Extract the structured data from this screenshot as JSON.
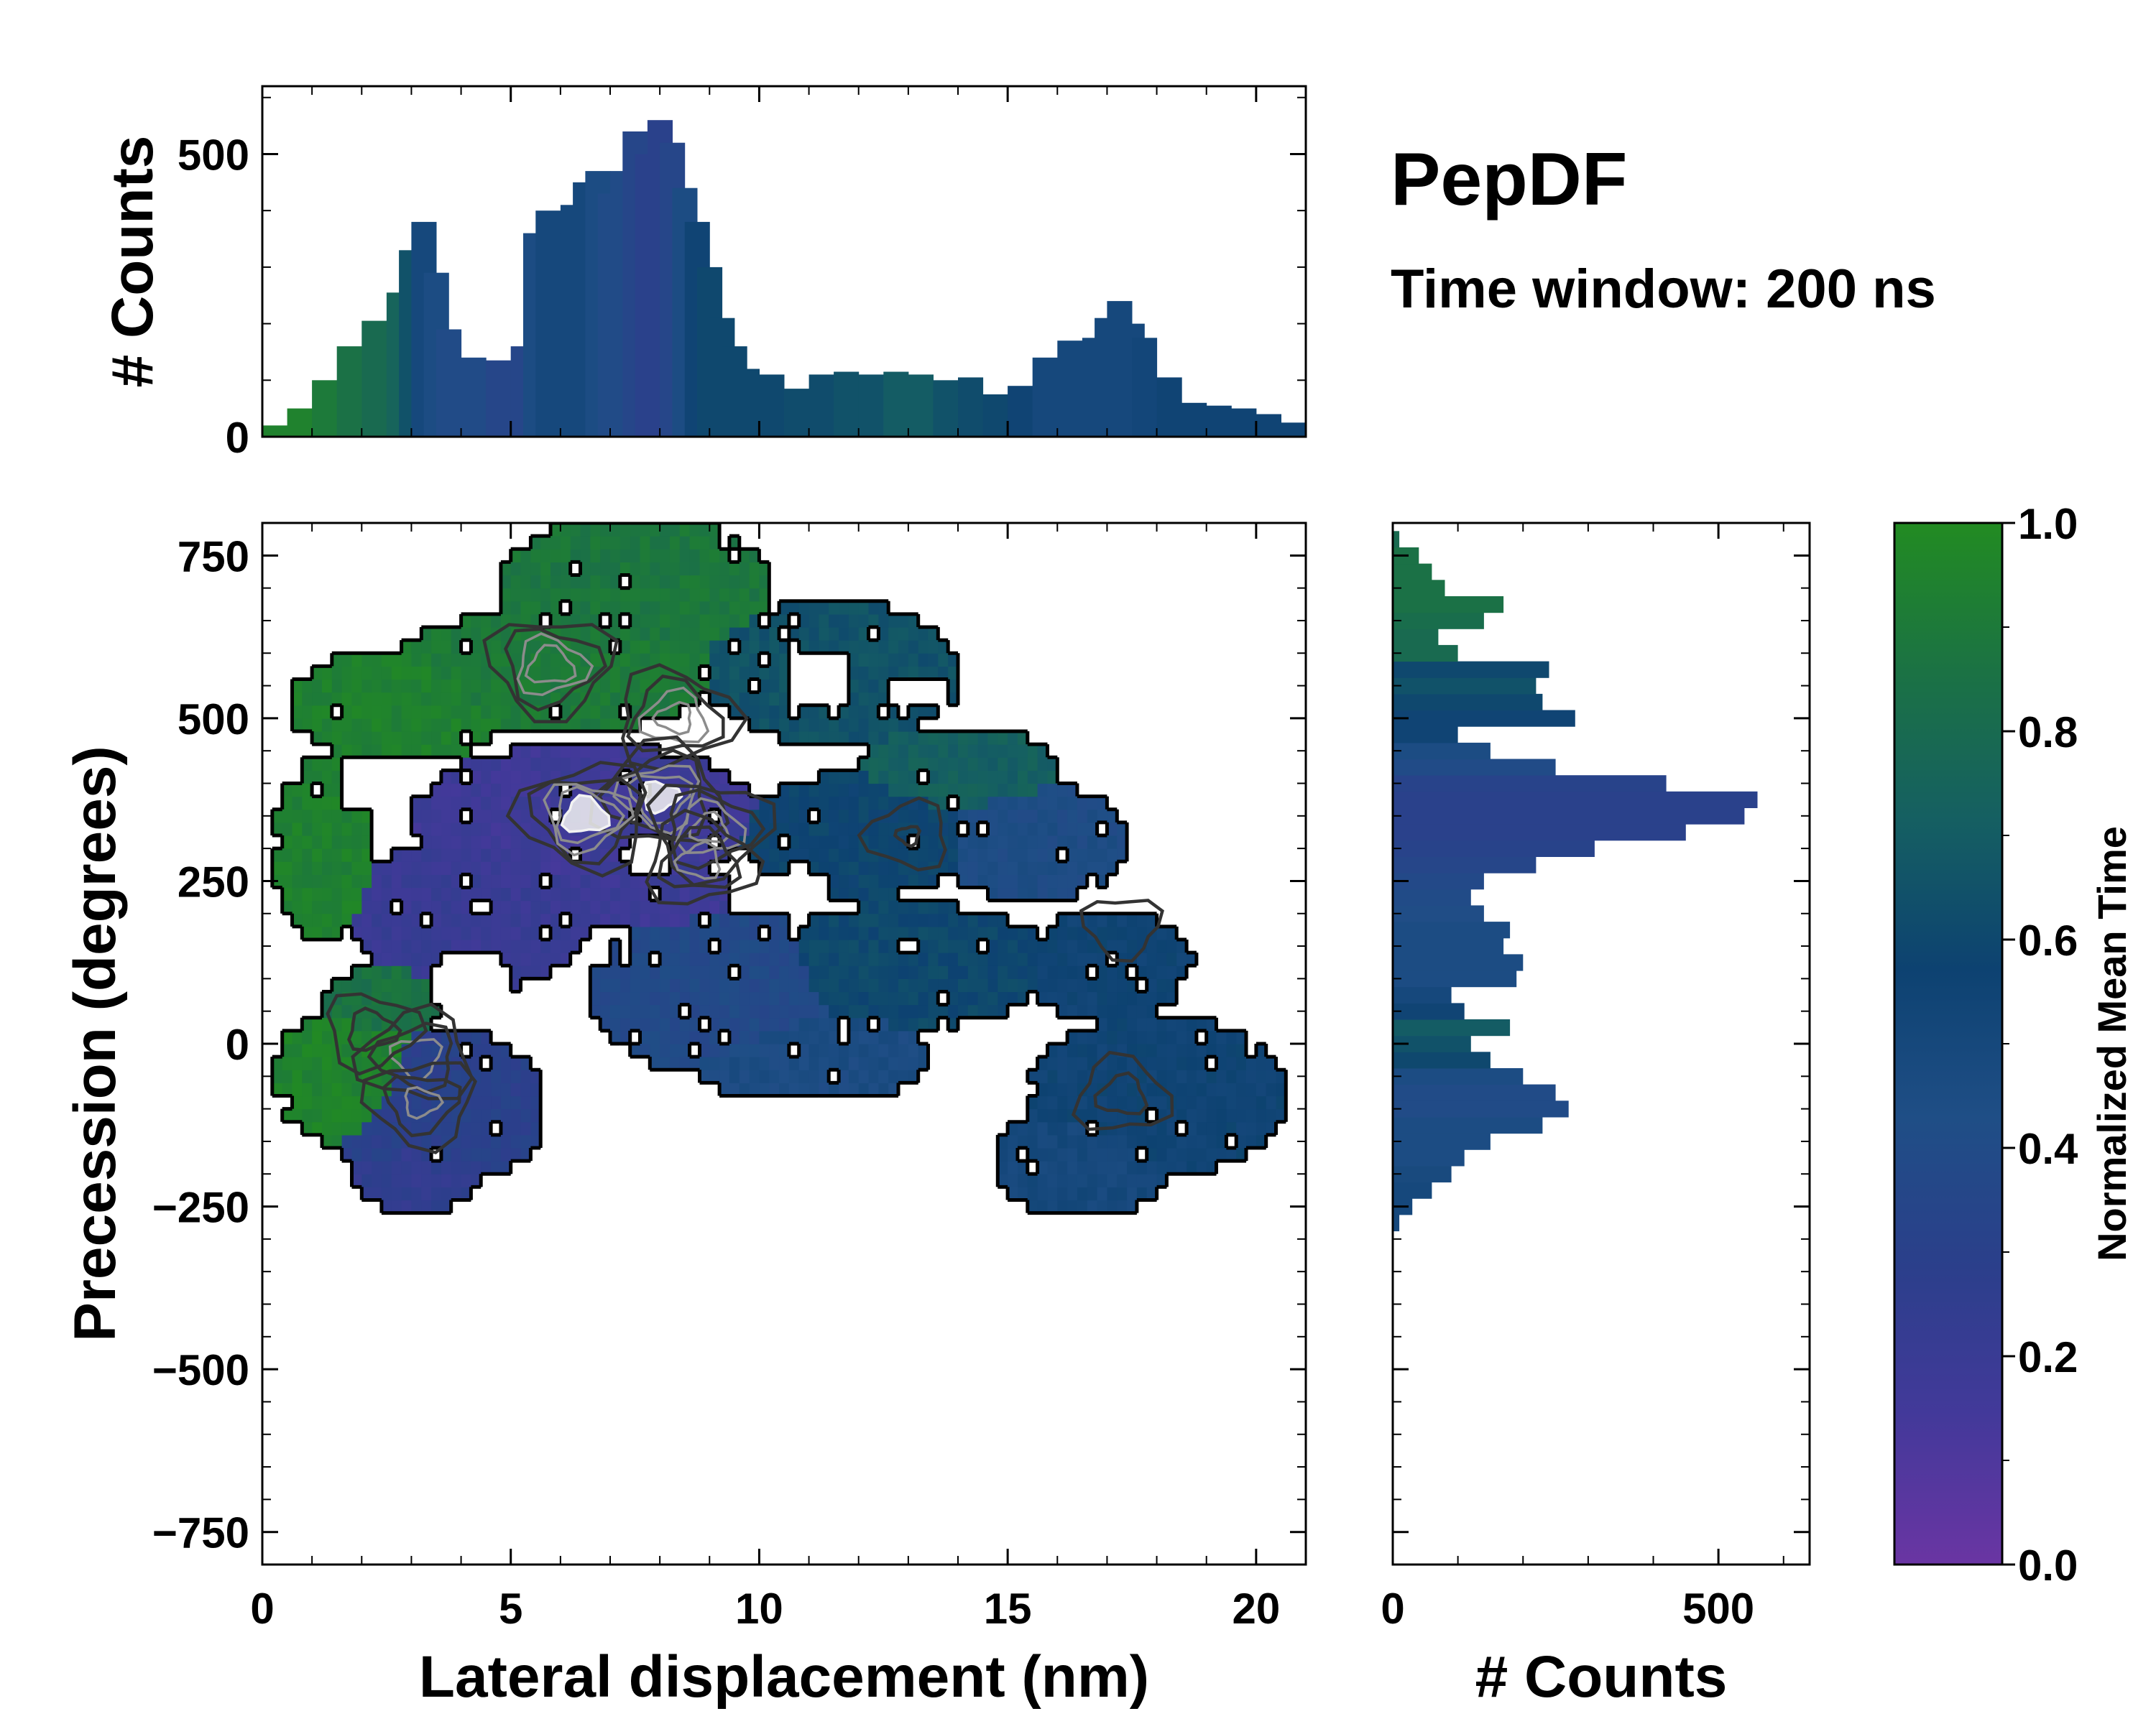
{
  "title": "PepDF",
  "subtitle": "Time window: 200 ns",
  "colors": {
    "cmap": [
      "#6a35a3",
      "#43399a",
      "#2b3f8b",
      "#1f4e86",
      "#0d4271",
      "#155f62",
      "#1b7244",
      "#228b22"
    ],
    "contour_outer": "#000000",
    "contour_mid": "#333333",
    "contour_inner": "#8c8c8c",
    "hotspot": "#f2f2f2"
  },
  "chart_data": [
    {
      "id": "joint",
      "type": "heatmap",
      "xlabel": "Lateral displacement (nm)",
      "ylabel": "Precession (degrees)",
      "xlim": [
        0,
        21
      ],
      "ylim": [
        -800,
        800
      ],
      "xticks": [
        0,
        5,
        10,
        15,
        20
      ],
      "xtick_labels": [
        "0",
        "5",
        "10",
        "15",
        "20"
      ],
      "yticks": [
        -750,
        -500,
        -250,
        0,
        250,
        500,
        750
      ],
      "ytick_labels": [
        "−750",
        "−500",
        "−250",
        "0",
        "250",
        "500",
        "750"
      ],
      "colorbar_variable": "Normalized Mean Time",
      "clusters": [
        {
          "cx": 2.8,
          "cy": 520,
          "rx": 2.3,
          "ry": 85,
          "time": 0.94
        },
        {
          "cx": 5.8,
          "cy": 570,
          "rx": 3.3,
          "ry": 95,
          "time": 0.9
        },
        {
          "cx": 7.5,
          "cy": 700,
          "rx": 2.8,
          "ry": 110,
          "time": 0.88
        },
        {
          "cx": 11.5,
          "cy": 570,
          "rx": 2.6,
          "ry": 110,
          "time": 0.65
        },
        {
          "cx": 14.0,
          "cy": 420,
          "rx": 2.0,
          "ry": 70,
          "time": 0.72
        },
        {
          "cx": 1.2,
          "cy": 300,
          "rx": 1.0,
          "ry": 150,
          "time": 0.94
        },
        {
          "cx": 6.5,
          "cy": 350,
          "rx": 3.5,
          "ry": 110,
          "time": 0.17
        },
        {
          "cx": 4.2,
          "cy": 200,
          "rx": 2.4,
          "ry": 120,
          "time": 0.2
        },
        {
          "cx": 12.0,
          "cy": 320,
          "rx": 2.4,
          "ry": 95,
          "time": 0.58
        },
        {
          "cx": 15.5,
          "cy": 310,
          "rx": 1.9,
          "ry": 90,
          "time": 0.43
        },
        {
          "cx": 13.0,
          "cy": 120,
          "rx": 3.0,
          "ry": 95,
          "time": 0.6
        },
        {
          "cx": 9.2,
          "cy": 80,
          "rx": 2.6,
          "ry": 130,
          "time": 0.38
        },
        {
          "cx": 11.0,
          "cy": -20,
          "rx": 2.5,
          "ry": 70,
          "time": 0.45
        },
        {
          "cx": 17.0,
          "cy": 120,
          "rx": 1.8,
          "ry": 85,
          "time": 0.55
        },
        {
          "cx": 18.0,
          "cy": -80,
          "rx": 2.7,
          "ry": 125,
          "time": 0.55
        },
        {
          "cx": 16.5,
          "cy": -180,
          "rx": 1.8,
          "ry": 85,
          "time": 0.5
        },
        {
          "cx": 1.8,
          "cy": -50,
          "rx": 1.6,
          "ry": 110,
          "time": 0.95
        },
        {
          "cx": 3.5,
          "cy": -100,
          "rx": 2.2,
          "ry": 130,
          "time": 0.3
        },
        {
          "cx": 3.2,
          "cy": -200,
          "rx": 1.4,
          "ry": 60,
          "time": 0.25
        },
        {
          "cx": 2.5,
          "cy": 60,
          "rx": 1.3,
          "ry": 60,
          "time": 0.85
        },
        {
          "cx": 7.5,
          "cy": 230,
          "rx": 2.0,
          "ry": 60,
          "time": 0.18
        }
      ],
      "holes": [
        {
          "cx": 4.2,
          "cy": 90,
          "rx": 0.8,
          "ry": 55
        },
        {
          "cx": 9.8,
          "cy": 450,
          "rx": 0.6,
          "ry": 40
        },
        {
          "cx": 11.2,
          "cy": 560,
          "rx": 0.7,
          "ry": 45
        },
        {
          "cx": 10.8,
          "cy": 230,
          "rx": 0.6,
          "ry": 45
        },
        {
          "cx": 2.0,
          "cy": 390,
          "rx": 0.5,
          "ry": 40
        },
        {
          "cx": 13.2,
          "cy": 540,
          "rx": 0.7,
          "ry": 30
        },
        {
          "cx": 7.8,
          "cy": 290,
          "rx": 0.5,
          "ry": 25
        }
      ],
      "density_peaks": [
        {
          "x": 5.8,
          "y": 580,
          "w": 2.2
        },
        {
          "x": 8.3,
          "y": 500,
          "w": 2.0
        },
        {
          "x": 8.0,
          "y": 380,
          "w": 2.6
        },
        {
          "x": 6.5,
          "y": 350,
          "w": 2.8
        },
        {
          "x": 9.0,
          "y": 330,
          "w": 2.0
        },
        {
          "x": 8.8,
          "y": 280,
          "w": 1.5
        },
        {
          "x": 3.1,
          "y": -20,
          "w": 1.6
        },
        {
          "x": 3.2,
          "y": -90,
          "w": 1.4
        },
        {
          "x": 2.2,
          "y": 20,
          "w": 1.0
        },
        {
          "x": 17.3,
          "y": -80,
          "w": 1.0
        },
        {
          "x": 13.0,
          "y": 320,
          "w": 0.8
        },
        {
          "x": 17.3,
          "y": 180,
          "w": 0.7
        }
      ]
    },
    {
      "id": "top_marginal",
      "type": "bar",
      "ylabel": "# Counts",
      "xlim": [
        0,
        21
      ],
      "ylim": [
        0,
        620
      ],
      "yticks": [
        0,
        500
      ],
      "ytick_labels": [
        "0",
        "500"
      ],
      "x": [
        0.25,
        0.75,
        1.25,
        1.75,
        2.25,
        2.75,
        3.0,
        3.25,
        3.5,
        3.75,
        4.25,
        4.75,
        5.25,
        5.5,
        5.75,
        6.0,
        6.25,
        6.5,
        6.75,
        7.0,
        7.25,
        7.5,
        7.75,
        8.0,
        8.25,
        8.5,
        8.75,
        9.0,
        9.25,
        9.5,
        9.75,
        10.25,
        10.75,
        11.25,
        11.75,
        12.25,
        12.75,
        13.25,
        13.75,
        14.25,
        14.75,
        15.25,
        15.75,
        16.25,
        16.75,
        17.0,
        17.25,
        17.5,
        17.75,
        18.25,
        18.75,
        19.25,
        19.75,
        20.25,
        20.75
      ],
      "values": [
        20,
        50,
        100,
        160,
        205,
        255,
        330,
        380,
        290,
        190,
        140,
        135,
        160,
        360,
        400,
        360,
        410,
        450,
        470,
        430,
        470,
        540,
        500,
        560,
        520,
        440,
        380,
        300,
        210,
        160,
        120,
        110,
        85,
        110,
        115,
        110,
        115,
        110,
        100,
        105,
        75,
        90,
        140,
        170,
        175,
        210,
        240,
        200,
        175,
        105,
        60,
        55,
        50,
        40,
        25
      ],
      "times": [
        0.95,
        0.95,
        0.9,
        0.85,
        0.8,
        0.75,
        0.65,
        0.5,
        0.45,
        0.4,
        0.4,
        0.35,
        0.35,
        0.45,
        0.5,
        0.5,
        0.5,
        0.5,
        0.45,
        0.4,
        0.4,
        0.35,
        0.3,
        0.3,
        0.35,
        0.45,
        0.55,
        0.6,
        0.6,
        0.6,
        0.6,
        0.6,
        0.62,
        0.62,
        0.65,
        0.65,
        0.7,
        0.7,
        0.65,
        0.62,
        0.6,
        0.55,
        0.5,
        0.5,
        0.5,
        0.5,
        0.5,
        0.5,
        0.52,
        0.55,
        0.55,
        0.55,
        0.55,
        0.55,
        0.55
      ]
    },
    {
      "id": "right_marginal",
      "type": "bar",
      "xlabel": "# Counts",
      "xlim": [
        0,
        640
      ],
      "xticks": [
        0,
        500
      ],
      "xtick_labels": [
        "0",
        "500"
      ],
      "ylim": [
        -800,
        800
      ],
      "y": [
        -275,
        -250,
        -225,
        -200,
        -175,
        -150,
        -125,
        -100,
        -75,
        -50,
        -25,
        0,
        25,
        50,
        75,
        100,
        125,
        150,
        175,
        200,
        225,
        250,
        275,
        300,
        325,
        350,
        375,
        400,
        425,
        450,
        475,
        500,
        525,
        550,
        575,
        600,
        625,
        650,
        675,
        700,
        725,
        750,
        775
      ],
      "values": [
        10,
        30,
        60,
        90,
        110,
        150,
        230,
        270,
        250,
        200,
        150,
        120,
        180,
        110,
        90,
        190,
        200,
        170,
        180,
        140,
        120,
        140,
        220,
        310,
        450,
        540,
        560,
        420,
        250,
        150,
        100,
        280,
        230,
        220,
        240,
        100,
        70,
        140,
        170,
        80,
        60,
        40,
        10
      ],
      "times": [
        0.5,
        0.5,
        0.5,
        0.48,
        0.45,
        0.45,
        0.45,
        0.4,
        0.4,
        0.45,
        0.6,
        0.65,
        0.7,
        0.55,
        0.5,
        0.45,
        0.45,
        0.45,
        0.45,
        0.42,
        0.4,
        0.38,
        0.35,
        0.32,
        0.3,
        0.3,
        0.3,
        0.32,
        0.4,
        0.45,
        0.55,
        0.55,
        0.6,
        0.65,
        0.6,
        0.8,
        0.8,
        0.82,
        0.85,
        0.85,
        0.85,
        0.85,
        0.8
      ]
    }
  ],
  "colorbar": {
    "label": "Normalized Mean Time",
    "range": [
      0,
      1
    ],
    "ticks": [
      0,
      0.2,
      0.4,
      0.6,
      0.8,
      1.0
    ],
    "tick_labels": [
      "0.0",
      "0.2",
      "0.4",
      "0.6",
      "0.8",
      "1.0"
    ]
  }
}
